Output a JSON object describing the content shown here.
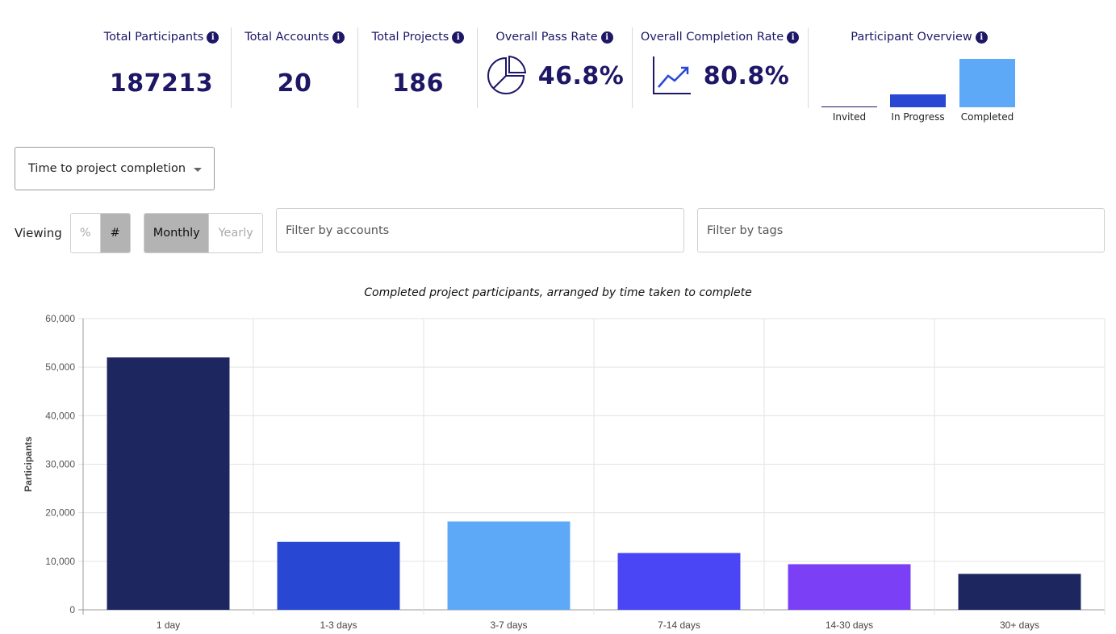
{
  "stats": {
    "total_participants": {
      "label": "Total Participants",
      "value": "187213"
    },
    "total_accounts": {
      "label": "Total Accounts",
      "value": "20"
    },
    "total_projects": {
      "label": "Total Projects",
      "value": "186"
    },
    "pass_rate": {
      "label": "Overall Pass Rate",
      "value": "46.8%",
      "icon": "pie-chart-icon"
    },
    "completion_rate": {
      "label": "Overall Completion Rate",
      "value": "80.8%",
      "icon": "trend-up-icon"
    },
    "overview": {
      "label": "Participant Overview",
      "bars": [
        {
          "label": "Invited",
          "level": 0.0,
          "color": "#1d1766"
        },
        {
          "label": "In Progress",
          "level": 0.26,
          "color": "#2848d4"
        },
        {
          "label": "Completed",
          "level": 1.0,
          "color": "#5ea8f8"
        }
      ]
    }
  },
  "controls": {
    "metric_select": "Time to project completion",
    "viewing_label": "Viewing",
    "unit_toggle": [
      {
        "label": "%",
        "active": false
      },
      {
        "label": "#",
        "active": true
      }
    ],
    "period_toggle": [
      {
        "label": "Monthly",
        "active": true
      },
      {
        "label": "Yearly",
        "active": false
      }
    ],
    "accounts_filter_placeholder": "Filter by accounts",
    "tags_filter_placeholder": "Filter by tags"
  },
  "chart_data": {
    "type": "bar",
    "title": "Completed project participants, arranged by time taken to complete",
    "xlabel": "",
    "ylabel": "Participants",
    "ylim": [
      0,
      60000
    ],
    "yticks": [
      "0",
      "10,000",
      "20,000",
      "30,000",
      "40,000",
      "50,000",
      "60,000"
    ],
    "grid": true,
    "categories": [
      "1 day",
      "1-3 days",
      "3-7 days",
      "7-14 days",
      "14-30 days",
      "30+ days"
    ],
    "values": [
      52000,
      14000,
      18200,
      11700,
      9400,
      7400
    ],
    "colors": [
      "#1e2660",
      "#2848d4",
      "#5ea8f8",
      "#4a45f5",
      "#7b3ff5",
      "#1e2660"
    ]
  }
}
